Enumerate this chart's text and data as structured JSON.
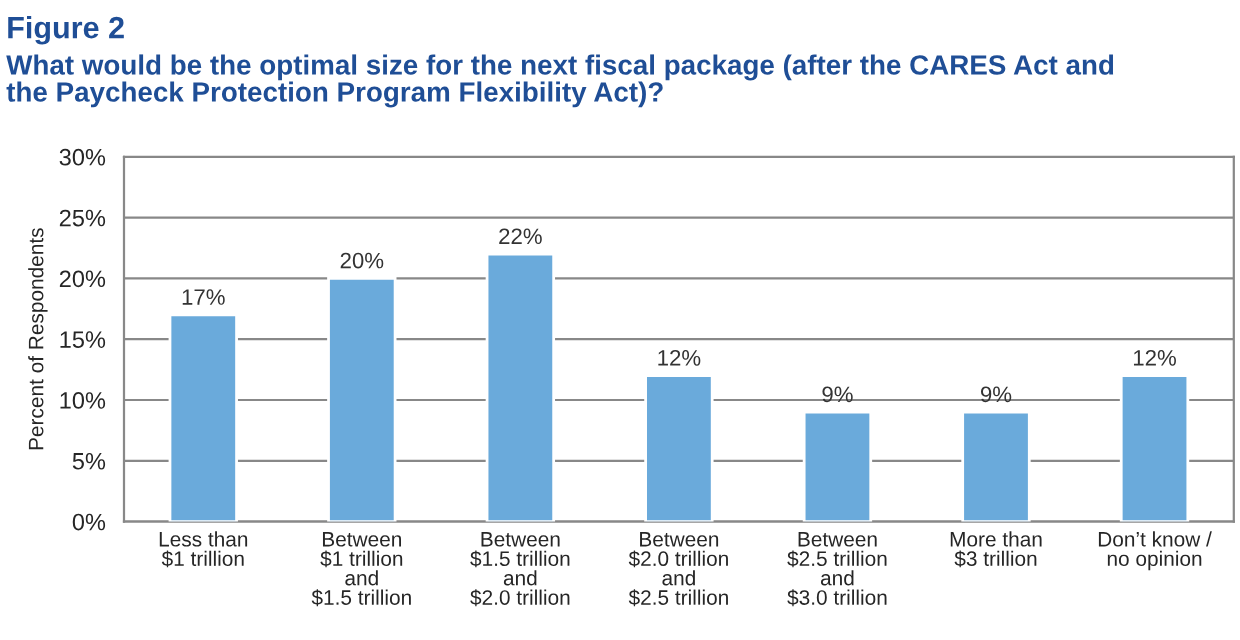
{
  "chart_data": {
    "type": "bar",
    "title": "Figure 2",
    "subtitle": "What would be the optimal size for the next fiscal package (after the CARES Act and\nthe Paycheck Protection Program Flexibility Act)?",
    "ylabel": "Percent of Respondents",
    "categories": [
      "Less than\n$1 trillion",
      "Between\n$1 trillion\nand\n$1.5 trillion",
      "Between\n$1.5 trillion\nand\n$2.0 trillion",
      "Between\n$2.0 trillion\nand\n$2.5 trillion",
      "Between\n$2.5 trillion\nand\n$3.0 trillion",
      "More than\n$3 trillion",
      "Don’t know /\nno opinion"
    ],
    "values": [
      17,
      20,
      22,
      12,
      9,
      9,
      12
    ],
    "value_labels": [
      "17%",
      "20%",
      "22%",
      "12%",
      "9%",
      "9%",
      "12%"
    ],
    "color": "#6aaadb",
    "ylim": [
      0,
      30
    ],
    "yticks": [
      {
        "value": 0,
        "label": "0%"
      },
      {
        "value": 5,
        "label": "5%"
      },
      {
        "value": 10,
        "label": "10%"
      },
      {
        "value": 15,
        "label": "15%"
      },
      {
        "value": 20,
        "label": "20%"
      },
      {
        "value": 25,
        "label": "25%"
      },
      {
        "value": 30,
        "label": "30%"
      }
    ],
    "grid": "y",
    "legend": false
  }
}
